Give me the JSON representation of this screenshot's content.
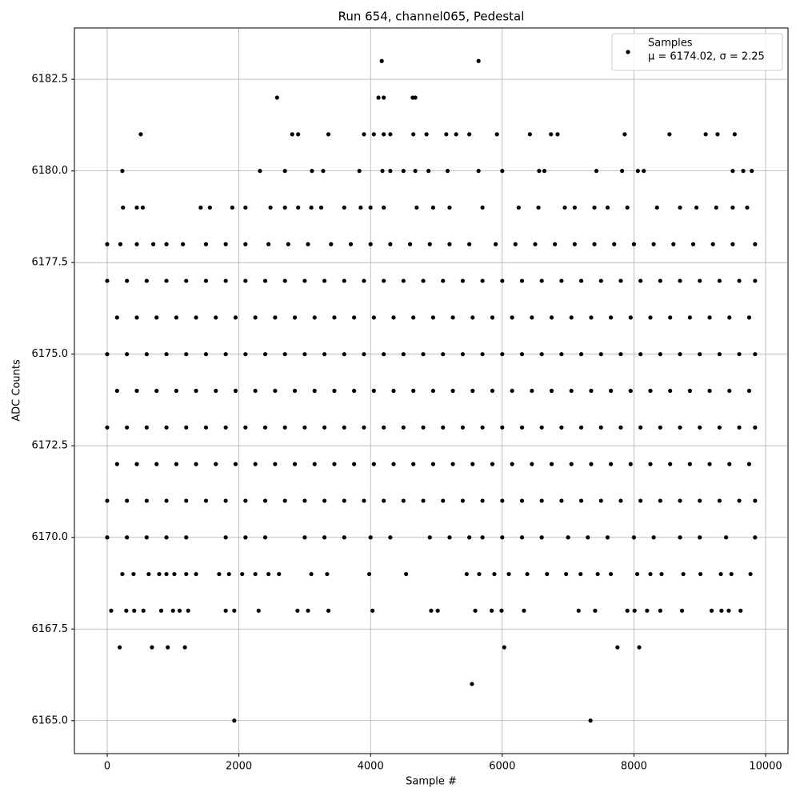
{
  "chart_data": {
    "type": "scatter",
    "title": "Run 654, channel065, Pedestal",
    "x_label": "Sample #",
    "y_label": "ADC Counts",
    "xlim": [
      -498,
      10340
    ],
    "ylim": [
      6164.1,
      6183.9
    ],
    "xticks": [
      0,
      2000,
      4000,
      6000,
      8000,
      10000
    ],
    "yticks": [
      {
        "value": 6165,
        "label": "6165.0"
      },
      {
        "value": 6167.5,
        "label": "6167.5"
      },
      {
        "value": 6170,
        "label": "6170.0"
      },
      {
        "value": 6172.5,
        "label": "6172.5"
      },
      {
        "value": 6175,
        "label": "6175.0"
      },
      {
        "value": 6177.5,
        "label": "6177.5"
      },
      {
        "value": 6180,
        "label": "6180.0"
      },
      {
        "value": 6182.5,
        "label": "6182.5"
      }
    ],
    "grid": true,
    "legend": "upper right",
    "legend_note": "μ = 6174.02, σ = 2.25",
    "series": [
      {
        "name": "Samples",
        "color": "#000000",
        "x": [
          1930,
          7340,
          5540,
          190,
          680,
          920,
          1180,
          6030,
          7750,
          8080,
          60,
          290,
          410,
          550,
          820,
          1000,
          1100,
          1230,
          1800,
          1930,
          2300,
          2890,
          3050,
          3360,
          4030,
          4920,
          5020,
          5590,
          5840,
          5990,
          6330,
          7160,
          7410,
          7900,
          8010,
          8200,
          8400,
          8730,
          9180,
          9330,
          9440,
          9620,
          230,
          400,
          630,
          790,
          900,
          1020,
          1200,
          1350,
          1700,
          1850,
          2050,
          2250,
          2450,
          2610,
          3100,
          3340,
          3980,
          4540,
          5460,
          5650,
          5880,
          6100,
          6380,
          6680,
          6970,
          7190,
          7450,
          7650,
          8050,
          8250,
          8420,
          8750,
          9010,
          9320,
          9480,
          9770,
          0,
          300,
          600,
          900,
          1200,
          1800,
          2100,
          2400,
          3000,
          3300,
          3600,
          4000,
          4300,
          4900,
          5200,
          5500,
          5700,
          6000,
          6300,
          6600,
          7000,
          7300,
          7600,
          8000,
          8300,
          8700,
          9000,
          9400,
          9840,
          0,
          300,
          600,
          900,
          1200,
          1500,
          1800,
          2100,
          2400,
          2700,
          3000,
          3300,
          3600,
          3900,
          4200,
          4500,
          4800,
          5100,
          5400,
          5700,
          6000,
          6300,
          6600,
          6900,
          7200,
          7500,
          7800,
          8100,
          8400,
          8700,
          9000,
          9300,
          9600,
          9840,
          150,
          450,
          750,
          1050,
          1350,
          1650,
          1950,
          2250,
          2550,
          2850,
          3150,
          3450,
          3750,
          4050,
          4350,
          4650,
          4950,
          5250,
          5550,
          5850,
          6150,
          6450,
          6750,
          7050,
          7350,
          7650,
          7950,
          8250,
          8550,
          8850,
          9150,
          9450,
          9750,
          0,
          300,
          600,
          900,
          1200,
          1500,
          1800,
          2100,
          2400,
          2700,
          3000,
          3300,
          3600,
          3900,
          4200,
          4500,
          4800,
          5100,
          5400,
          5700,
          6000,
          6300,
          6600,
          6900,
          7200,
          7500,
          7800,
          8100,
          8400,
          8700,
          9000,
          9300,
          9600,
          9840,
          150,
          450,
          750,
          1050,
          1350,
          1650,
          1950,
          2250,
          2550,
          2850,
          3150,
          3450,
          3750,
          4050,
          4350,
          4650,
          4950,
          5250,
          5550,
          5850,
          6150,
          6450,
          6750,
          7050,
          7350,
          7650,
          7950,
          8250,
          8550,
          8850,
          9150,
          9450,
          9750,
          0,
          300,
          600,
          900,
          1200,
          1500,
          1800,
          2100,
          2400,
          2700,
          3000,
          3300,
          3600,
          3900,
          4200,
          4500,
          4800,
          5100,
          5400,
          5700,
          6000,
          6300,
          6600,
          6900,
          7200,
          7500,
          7800,
          8100,
          8400,
          8700,
          9000,
          9300,
          9600,
          9840,
          150,
          450,
          750,
          1050,
          1350,
          1650,
          1950,
          2250,
          2550,
          2850,
          3150,
          3450,
          3750,
          4050,
          4350,
          4650,
          4950,
          5250,
          5550,
          5850,
          6150,
          6450,
          6750,
          7050,
          7350,
          7650,
          7950,
          8250,
          8550,
          8850,
          9150,
          9450,
          9750,
          0,
          300,
          600,
          900,
          1200,
          1500,
          1800,
          2100,
          2400,
          2700,
          3000,
          3300,
          3600,
          3900,
          4200,
          4500,
          4800,
          5100,
          5400,
          5700,
          6000,
          6300,
          6600,
          6900,
          7200,
          7500,
          7800,
          8100,
          8400,
          8700,
          9000,
          9300,
          9600,
          9840,
          0,
          200,
          450,
          700,
          900,
          1150,
          1500,
          1800,
          2100,
          2450,
          2750,
          3050,
          3400,
          3700,
          4000,
          4300,
          4600,
          4900,
          5200,
          5500,
          5900,
          6200,
          6500,
          6800,
          7100,
          7400,
          7700,
          8000,
          8300,
          8600,
          8900,
          9200,
          9500,
          9840,
          240,
          450,
          540,
          1420,
          1560,
          1900,
          2100,
          2480,
          2700,
          2900,
          3100,
          3250,
          3600,
          3850,
          4000,
          4200,
          4700,
          4950,
          5200,
          5700,
          6250,
          6550,
          6950,
          7100,
          7400,
          7600,
          7900,
          8350,
          8700,
          8950,
          9250,
          9500,
          9720,
          230,
          2320,
          2700,
          3110,
          3280,
          3830,
          4180,
          4300,
          4500,
          4680,
          4880,
          5170,
          5640,
          6000,
          6560,
          6640,
          7430,
          7820,
          8060,
          8150,
          9500,
          9660,
          9790,
          510,
          2810,
          2900,
          3360,
          3900,
          4050,
          4200,
          4300,
          4650,
          4850,
          5150,
          5300,
          5500,
          5920,
          6420,
          6740,
          6840,
          7860,
          8540,
          9090,
          9270,
          9530,
          2580,
          4120,
          4200,
          4640,
          4680,
          4170,
          5640
        ],
        "values": [
          6165,
          6165,
          6166,
          6167,
          6167,
          6167,
          6167,
          6167,
          6167,
          6167,
          6168,
          6168,
          6168,
          6168,
          6168,
          6168,
          6168,
          6168,
          6168,
          6168,
          6168,
          6168,
          6168,
          6168,
          6168,
          6168,
          6168,
          6168,
          6168,
          6168,
          6168,
          6168,
          6168,
          6168,
          6168,
          6168,
          6168,
          6168,
          6168,
          6168,
          6168,
          6168,
          6169,
          6169,
          6169,
          6169,
          6169,
          6169,
          6169,
          6169,
          6169,
          6169,
          6169,
          6169,
          6169,
          6169,
          6169,
          6169,
          6169,
          6169,
          6169,
          6169,
          6169,
          6169,
          6169,
          6169,
          6169,
          6169,
          6169,
          6169,
          6169,
          6169,
          6169,
          6169,
          6169,
          6169,
          6169,
          6169,
          6170,
          6170,
          6170,
          6170,
          6170,
          6170,
          6170,
          6170,
          6170,
          6170,
          6170,
          6170,
          6170,
          6170,
          6170,
          6170,
          6170,
          6170,
          6170,
          6170,
          6170,
          6170,
          6170,
          6170,
          6170,
          6170,
          6170,
          6170,
          6170,
          6171,
          6171,
          6171,
          6171,
          6171,
          6171,
          6171,
          6171,
          6171,
          6171,
          6171,
          6171,
          6171,
          6171,
          6171,
          6171,
          6171,
          6171,
          6171,
          6171,
          6171,
          6171,
          6171,
          6171,
          6171,
          6171,
          6171,
          6171,
          6171,
          6171,
          6171,
          6171,
          6171,
          6171,
          6172,
          6172,
          6172,
          6172,
          6172,
          6172,
          6172,
          6172,
          6172,
          6172,
          6172,
          6172,
          6172,
          6172,
          6172,
          6172,
          6172,
          6172,
          6172,
          6172,
          6172,
          6172,
          6172,
          6172,
          6172,
          6172,
          6172,
          6172,
          6172,
          6172,
          6172,
          6172,
          6172,
          6173,
          6173,
          6173,
          6173,
          6173,
          6173,
          6173,
          6173,
          6173,
          6173,
          6173,
          6173,
          6173,
          6173,
          6173,
          6173,
          6173,
          6173,
          6173,
          6173,
          6173,
          6173,
          6173,
          6173,
          6173,
          6173,
          6173,
          6173,
          6173,
          6173,
          6173,
          6173,
          6173,
          6173,
          6174,
          6174,
          6174,
          6174,
          6174,
          6174,
          6174,
          6174,
          6174,
          6174,
          6174,
          6174,
          6174,
          6174,
          6174,
          6174,
          6174,
          6174,
          6174,
          6174,
          6174,
          6174,
          6174,
          6174,
          6174,
          6174,
          6174,
          6174,
          6174,
          6174,
          6174,
          6174,
          6174,
          6175,
          6175,
          6175,
          6175,
          6175,
          6175,
          6175,
          6175,
          6175,
          6175,
          6175,
          6175,
          6175,
          6175,
          6175,
          6175,
          6175,
          6175,
          6175,
          6175,
          6175,
          6175,
          6175,
          6175,
          6175,
          6175,
          6175,
          6175,
          6175,
          6175,
          6175,
          6175,
          6175,
          6175,
          6176,
          6176,
          6176,
          6176,
          6176,
          6176,
          6176,
          6176,
          6176,
          6176,
          6176,
          6176,
          6176,
          6176,
          6176,
          6176,
          6176,
          6176,
          6176,
          6176,
          6176,
          6176,
          6176,
          6176,
          6176,
          6176,
          6176,
          6176,
          6176,
          6176,
          6176,
          6176,
          6176,
          6177,
          6177,
          6177,
          6177,
          6177,
          6177,
          6177,
          6177,
          6177,
          6177,
          6177,
          6177,
          6177,
          6177,
          6177,
          6177,
          6177,
          6177,
          6177,
          6177,
          6177,
          6177,
          6177,
          6177,
          6177,
          6177,
          6177,
          6177,
          6177,
          6177,
          6177,
          6177,
          6177,
          6177,
          6178,
          6178,
          6178,
          6178,
          6178,
          6178,
          6178,
          6178,
          6178,
          6178,
          6178,
          6178,
          6178,
          6178,
          6178,
          6178,
          6178,
          6178,
          6178,
          6178,
          6178,
          6178,
          6178,
          6178,
          6178,
          6178,
          6178,
          6178,
          6178,
          6178,
          6178,
          6178,
          6178,
          6178,
          6179,
          6179,
          6179,
          6179,
          6179,
          6179,
          6179,
          6179,
          6179,
          6179,
          6179,
          6179,
          6179,
          6179,
          6179,
          6179,
          6179,
          6179,
          6179,
          6179,
          6179,
          6179,
          6179,
          6179,
          6179,
          6179,
          6179,
          6179,
          6179,
          6179,
          6179,
          6179,
          6179,
          6180,
          6180,
          6180,
          6180,
          6180,
          6180,
          6180,
          6180,
          6180,
          6180,
          6180,
          6180,
          6180,
          6180,
          6180,
          6180,
          6180,
          6180,
          6180,
          6180,
          6180,
          6180,
          6180,
          6181,
          6181,
          6181,
          6181,
          6181,
          6181,
          6181,
          6181,
          6181,
          6181,
          6181,
          6181,
          6181,
          6181,
          6181,
          6181,
          6181,
          6181,
          6181,
          6181,
          6181,
          6181,
          6182,
          6182,
          6182,
          6182,
          6182,
          6183,
          6183
        ]
      }
    ]
  }
}
